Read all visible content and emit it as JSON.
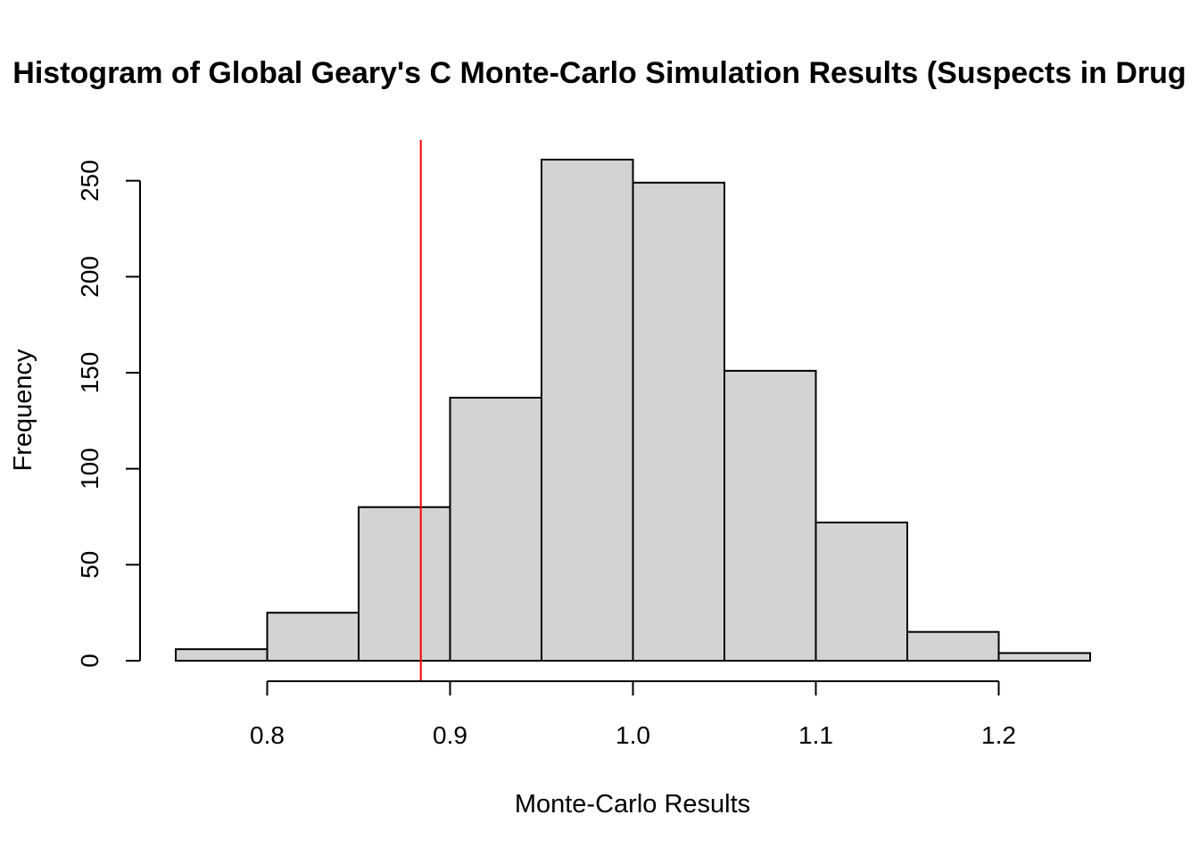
{
  "chart_data": {
    "type": "bar",
    "title": "Histogram of Global Geary's C Monte-Carlo Simulation Results (Suspects in Drug",
    "xlabel": "Monte-Carlo Results",
    "ylabel": "Frequency",
    "bins": [
      {
        "x0": 0.75,
        "x1": 0.8,
        "count": 6
      },
      {
        "x0": 0.8,
        "x1": 0.85,
        "count": 25
      },
      {
        "x0": 0.85,
        "x1": 0.9,
        "count": 80
      },
      {
        "x0": 0.9,
        "x1": 0.95,
        "count": 137
      },
      {
        "x0": 0.95,
        "x1": 1.0,
        "count": 261
      },
      {
        "x0": 1.0,
        "x1": 1.05,
        "count": 249
      },
      {
        "x0": 1.05,
        "x1": 1.1,
        "count": 151
      },
      {
        "x0": 1.1,
        "x1": 1.15,
        "count": 72
      },
      {
        "x0": 1.15,
        "x1": 1.2,
        "count": 15
      },
      {
        "x0": 1.2,
        "x1": 1.25,
        "count": 4
      }
    ],
    "xlim": [
      0.75,
      1.25
    ],
    "ylim": [
      0,
      261
    ],
    "xticks": [
      0.8,
      0.9,
      1.0,
      1.1,
      1.2
    ],
    "xtick_labels": [
      "0.8",
      "0.9",
      "1.0",
      "1.1",
      "1.2"
    ],
    "yticks": [
      0,
      50,
      100,
      150,
      200,
      250
    ],
    "ytick_labels": [
      "0",
      "50",
      "100",
      "150",
      "200",
      "250"
    ],
    "reference_line": {
      "x": 0.884,
      "color": "#ff0000"
    },
    "bar_color": "#d3d3d3",
    "grid": false
  }
}
